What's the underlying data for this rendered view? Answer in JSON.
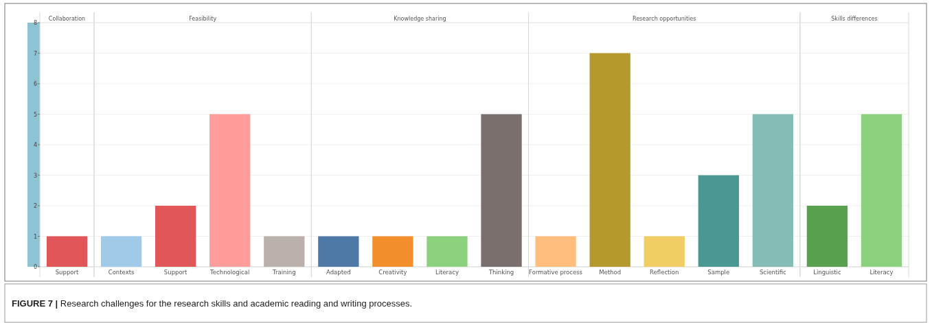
{
  "chart_data": [
    {
      "type": "bar",
      "title": "Collaboration",
      "categories": [
        "Support"
      ],
      "values": [
        1
      ],
      "colors": [
        "#e15759"
      ],
      "ylim": [
        0,
        8
      ],
      "yticks": [
        0,
        1,
        2,
        3,
        4,
        5,
        6,
        7,
        8
      ],
      "grid": "y",
      "annotations": [
        "FIGURE 7 | Research challenges for the research skills and academic reading and writing processes."
      ]
    },
    {
      "type": "bar",
      "title": "Feasibility",
      "categories": [
        "Contexts",
        "Support",
        "Technological",
        "Training"
      ],
      "values": [
        1,
        2,
        5,
        1
      ],
      "colors": [
        "#a0cbe8",
        "#e15759",
        "#ff9d9a",
        "#bab0ac"
      ],
      "ylim": [
        0,
        8
      ],
      "yticks": [
        0,
        1,
        2,
        3,
        4,
        5,
        6,
        7,
        8
      ],
      "grid": "y",
      "tick_labels": "x"
    },
    {
      "type": "bar",
      "title": "Knowledge sharing",
      "categories": [
        "Adapted",
        "Creativity",
        "Literacy",
        "Thinking"
      ],
      "values": [
        1,
        1,
        1,
        5
      ],
      "colors": [
        "#4e79a7",
        "#f28e2b",
        "#8cd17d",
        "#79706e"
      ],
      "ylim": [
        0,
        8
      ],
      "yticks": [
        0,
        1,
        2,
        3,
        4,
        5,
        6,
        7,
        8
      ],
      "grid": "y",
      "tick_labels": "x"
    },
    {
      "type": "bar",
      "title": "Research opportunities",
      "categories": [
        "Formative process",
        "Method",
        "Reflection",
        "Sample",
        "Scientific"
      ],
      "values": [
        1,
        7,
        1,
        3,
        5
      ],
      "colors": [
        "#ffbe7d",
        "#b6992d",
        "#f1ce63",
        "#499894",
        "#86bcb6"
      ],
      "ylim": [
        0,
        8
      ],
      "yticks": [
        0,
        1,
        2,
        3,
        4,
        5,
        6,
        7,
        8
      ],
      "grid": "y",
      "tick_labels": "x"
    },
    {
      "type": "bar",
      "title": "Skills differences",
      "categories": [
        "Linguistic",
        "Literacy"
      ],
      "values": [
        2,
        5
      ],
      "colors": [
        "#59a14f",
        "#8cd17d"
      ],
      "ylim": [
        0,
        8
      ],
      "yticks": [
        0,
        1,
        2,
        3,
        4,
        5,
        6,
        7,
        8
      ],
      "grid": "y",
      "tick_labels": "x"
    }
  ]
}
